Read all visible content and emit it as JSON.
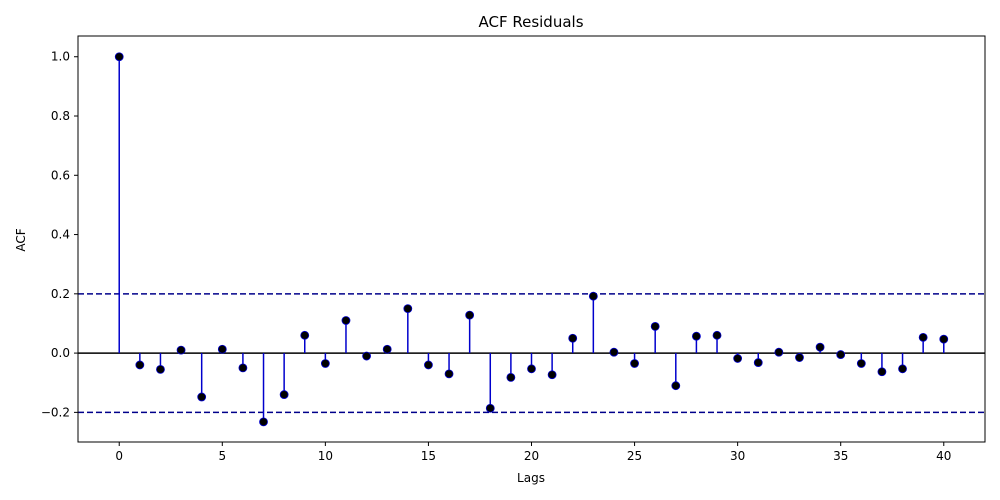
{
  "chart_data": {
    "type": "stem",
    "title": "ACF Residuals",
    "xlabel": "Lags",
    "ylabel": "ACF",
    "xlim": [
      -2,
      42
    ],
    "ylim": [
      -0.3,
      1.07
    ],
    "xticks": [
      0,
      5,
      10,
      15,
      20,
      25,
      30,
      35,
      40
    ],
    "yticks": [
      -0.2,
      0.0,
      0.2,
      0.4,
      0.6,
      0.8,
      1.0
    ],
    "ytick_labels": [
      "−0.2",
      "0.0",
      "0.2",
      "0.4",
      "0.6",
      "0.8",
      "1.0"
    ],
    "confidence_bounds": [
      0.2,
      -0.2
    ],
    "grid": false,
    "series": [
      {
        "x": [
          0,
          1,
          2,
          3,
          4,
          5,
          6,
          7,
          8,
          9,
          10,
          11,
          12,
          13,
          14,
          15,
          16,
          17,
          18,
          19,
          20,
          21,
          22,
          23,
          24,
          25,
          26,
          27,
          28,
          29,
          30,
          31,
          32,
          33,
          34,
          35,
          36,
          37,
          38,
          39,
          40
        ],
        "values": [
          1.0,
          -0.04,
          -0.055,
          0.01,
          -0.148,
          0.013,
          -0.05,
          -0.232,
          -0.14,
          0.06,
          -0.035,
          0.11,
          -0.01,
          0.013,
          0.15,
          -0.04,
          -0.07,
          0.128,
          -0.186,
          -0.082,
          -0.053,
          -0.073,
          0.05,
          0.192,
          0.003,
          -0.035,
          0.09,
          -0.11,
          0.057,
          0.06,
          -0.018,
          -0.032,
          0.003,
          -0.015,
          0.02,
          -0.005,
          -0.035,
          -0.063,
          -0.053,
          0.053,
          0.047
        ]
      }
    ],
    "colors": {
      "stem": "#0000cc",
      "marker": "#000000",
      "bound": "#00008b",
      "zero_line": "#000000"
    }
  }
}
